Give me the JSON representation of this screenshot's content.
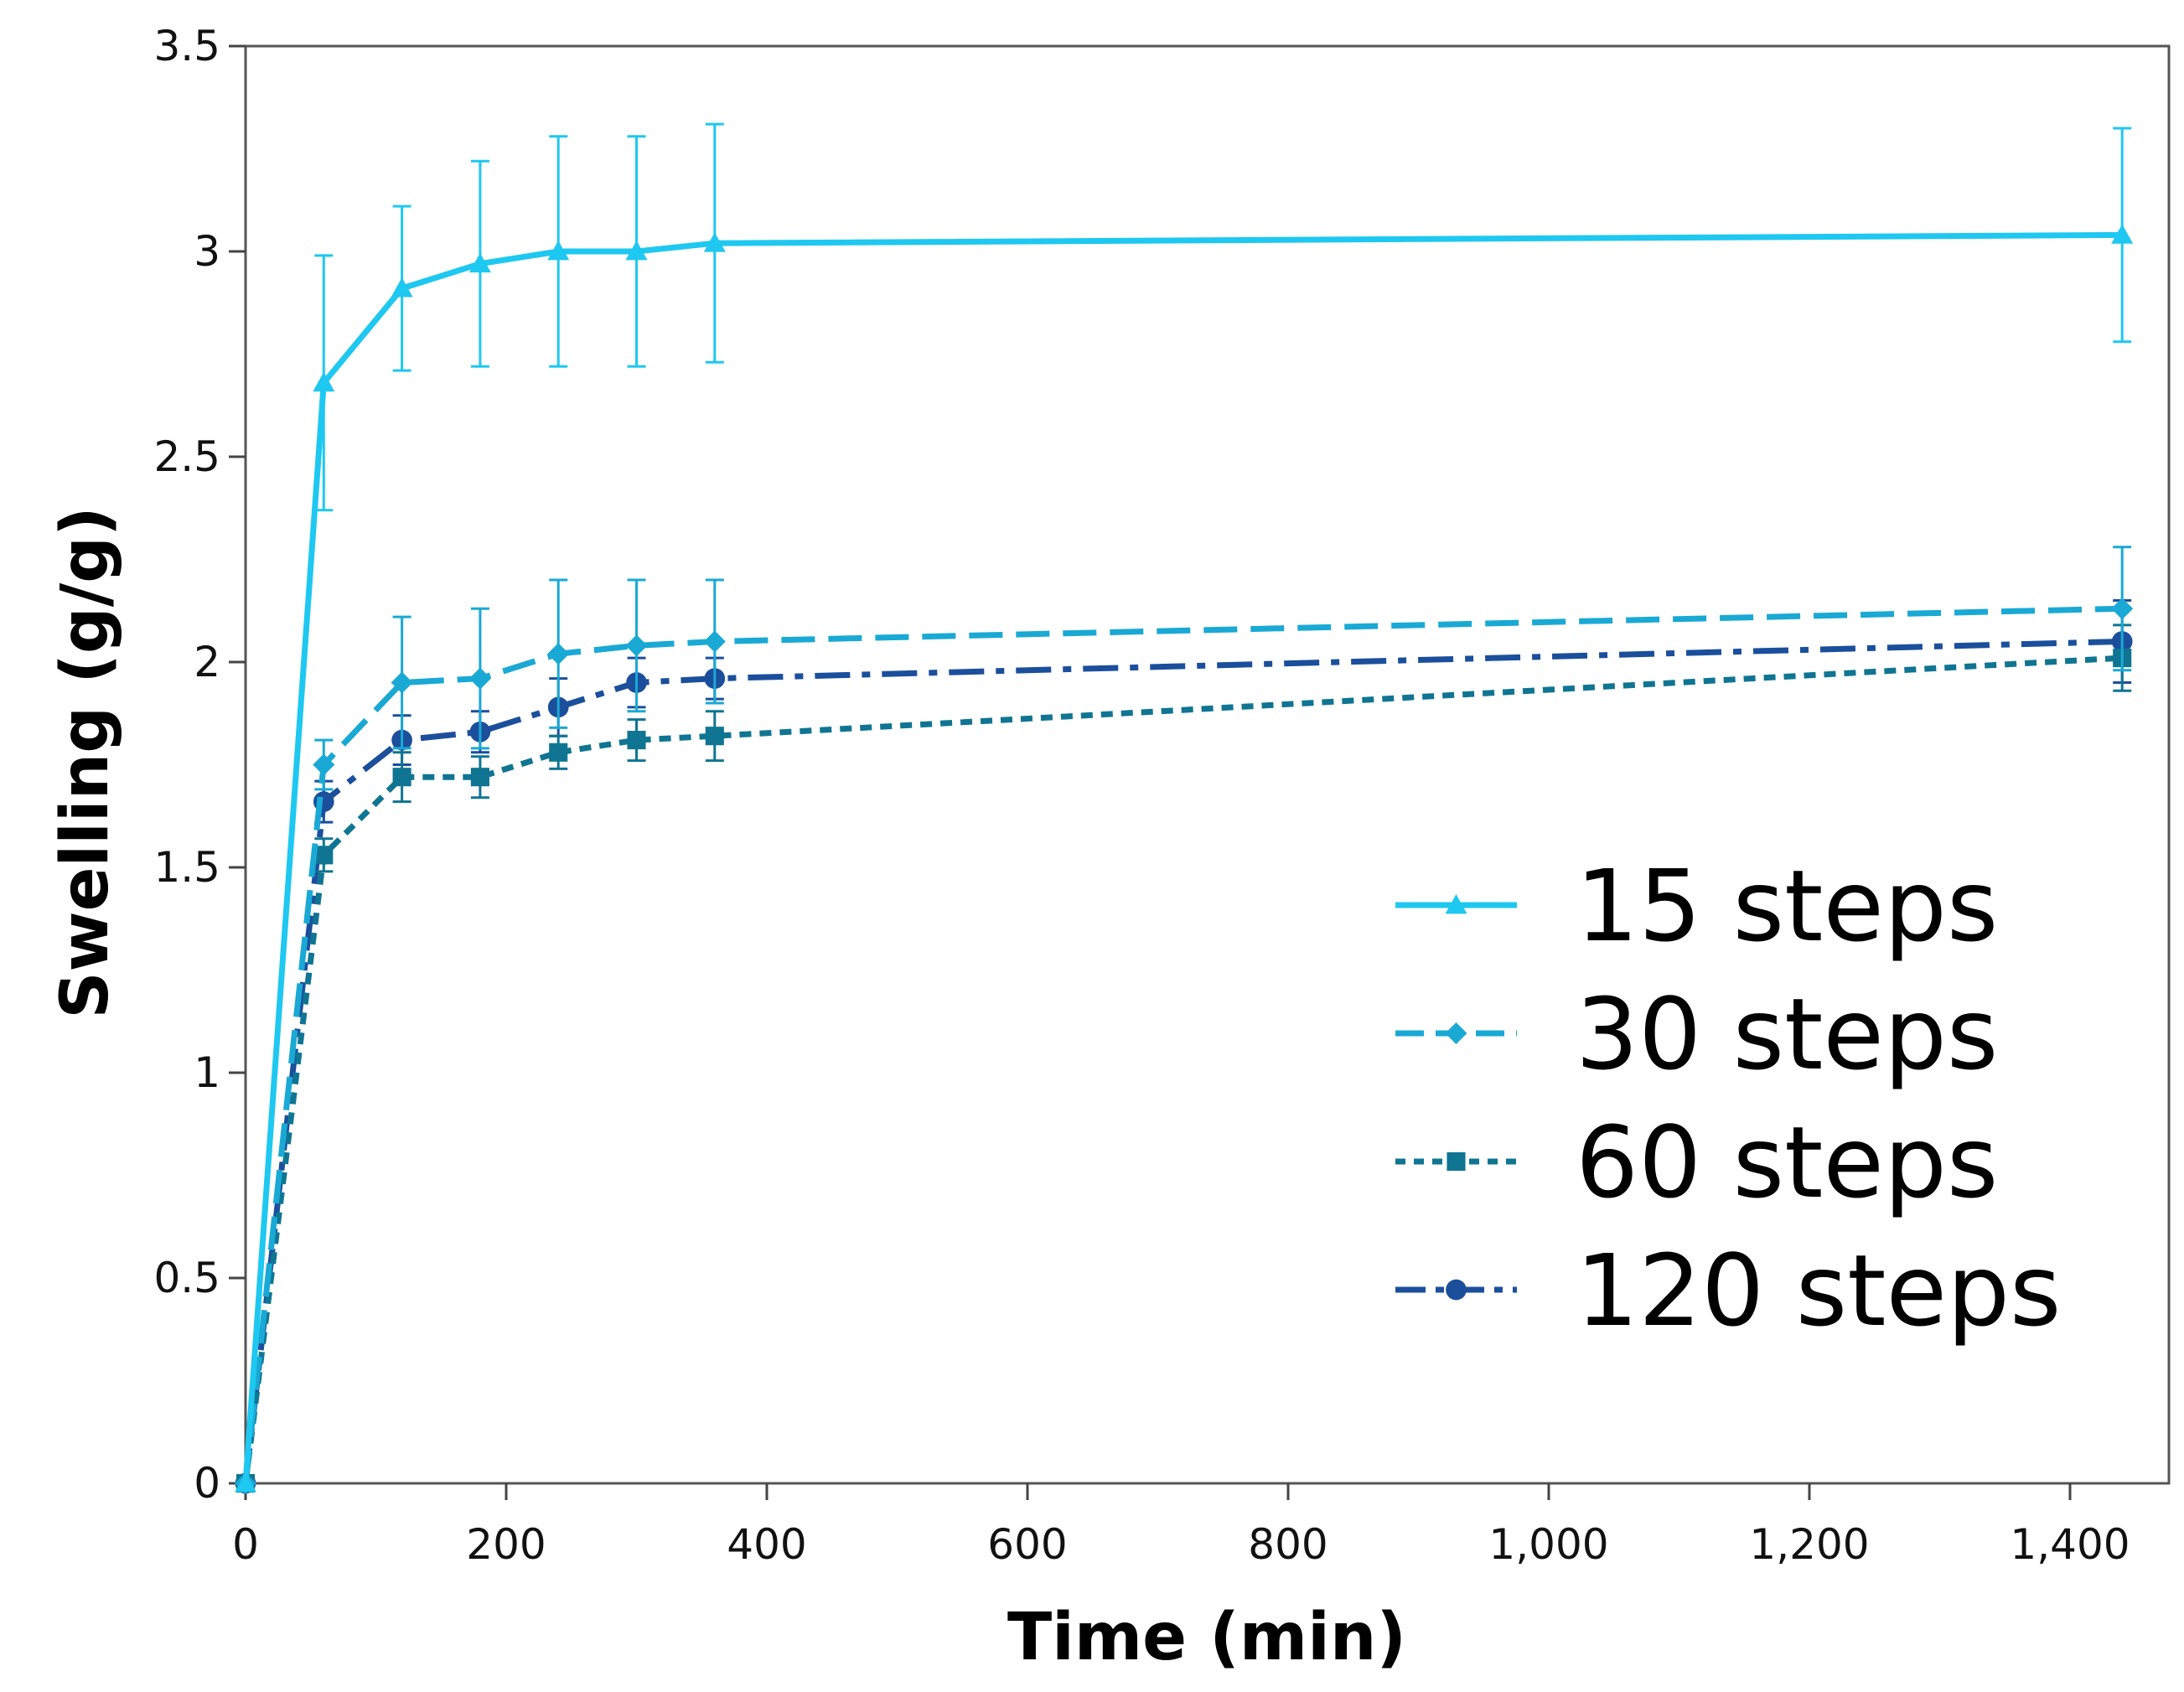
{
  "chart_data": {
    "type": "line",
    "title": "",
    "xlabel": "Time (min)",
    "ylabel": "Swelling (g/g)",
    "xlim": [
      0,
      1500
    ],
    "ylim": [
      0,
      3.5
    ],
    "xticks": [
      0,
      200,
      400,
      600,
      800,
      1000,
      1200,
      1400
    ],
    "xtick_labels": [
      "0",
      "200",
      "400",
      "600",
      "800",
      "1,000",
      "1,200",
      "1,400"
    ],
    "yticks": [
      0,
      0.5,
      1,
      1.5,
      2,
      2.5,
      3,
      3.5
    ],
    "ytick_labels": [
      "0",
      "0.5",
      "1",
      "1.5",
      "2",
      "2.5",
      "3",
      "3.5"
    ],
    "grid": false,
    "legend_position": "bottom-right",
    "x": [
      0,
      60,
      120,
      180,
      240,
      300,
      360,
      1440
    ],
    "series": [
      {
        "name": "15 steps",
        "color": "#1ec8f0",
        "line_style": "solid",
        "marker": "triangle",
        "values": [
          0,
          2.68,
          2.91,
          2.97,
          3.0,
          3.0,
          3.02,
          3.04
        ],
        "errors": [
          0,
          0.31,
          0.2,
          0.25,
          0.28,
          0.28,
          0.29,
          0.26
        ]
      },
      {
        "name": "30 steps",
        "color": "#19a9d4",
        "line_style": "dashed",
        "marker": "diamond",
        "values": [
          0,
          1.75,
          1.95,
          1.96,
          2.02,
          2.04,
          2.05,
          2.13
        ],
        "errors": [
          0,
          0.06,
          0.16,
          0.17,
          0.18,
          0.16,
          0.15,
          0.15
        ]
      },
      {
        "name": "60 steps",
        "color": "#0f7592",
        "line_style": "dotted",
        "marker": "square",
        "values": [
          0,
          1.53,
          1.72,
          1.72,
          1.78,
          1.81,
          1.82,
          2.01
        ],
        "errors": [
          0,
          0.04,
          0.06,
          0.05,
          0.04,
          0.05,
          0.06,
          0.08
        ]
      },
      {
        "name": "120 steps",
        "color": "#1b4f9c",
        "line_style": "dash-dot",
        "marker": "circle",
        "values": [
          0,
          1.66,
          1.81,
          1.83,
          1.89,
          1.95,
          1.96,
          2.05
        ],
        "errors": [
          0,
          0.05,
          0.06,
          0.05,
          0.07,
          0.06,
          0.05,
          0.1
        ]
      }
    ]
  }
}
